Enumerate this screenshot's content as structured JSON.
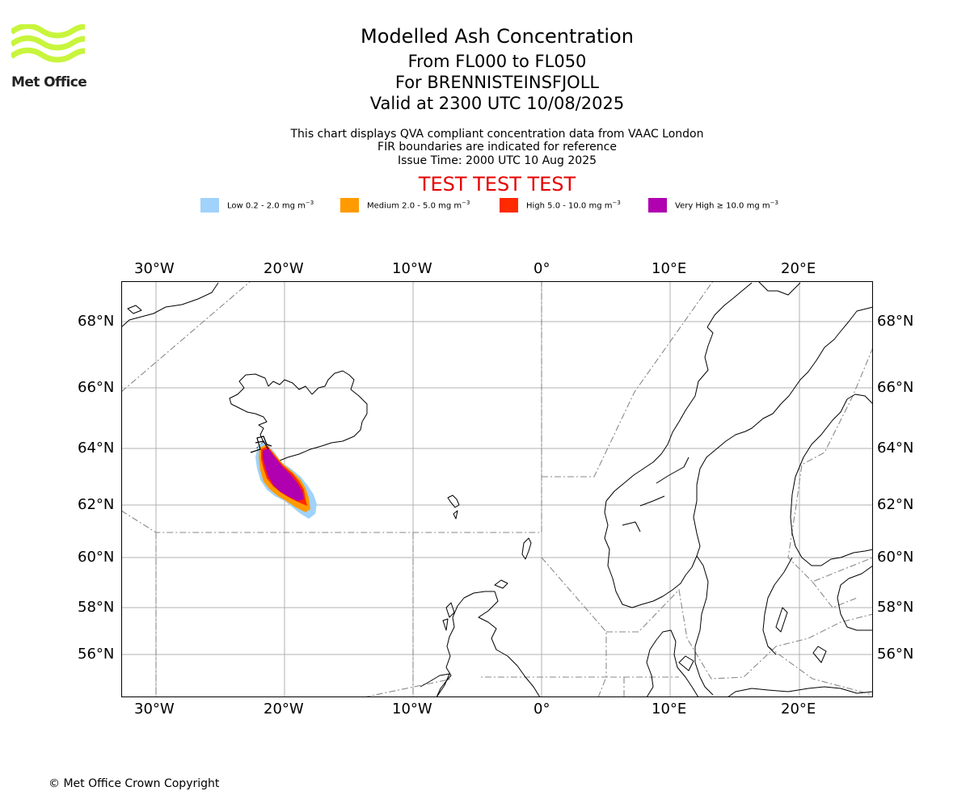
{
  "logo": {
    "text": "Met Office",
    "color": "#c8f53c"
  },
  "header": {
    "title": "Modelled Ash Concentration",
    "level_range": "From FL000 to FL050",
    "volcano": "For BRENNISTEINSFJOLL",
    "valid_time": "Valid at 2300 UTC 10/08/2025"
  },
  "description": {
    "line1": "This chart displays QVA compliant concentration data from VAAC London",
    "line2": "FIR boundaries are indicated for reference",
    "line3": "Issue Time: 2000 UTC 10 Aug 2025"
  },
  "test_banner": "TEST TEST TEST",
  "legend": [
    {
      "label": "Low 0.2 - 2.0 mg m",
      "exp": "−3",
      "color": "#a0d2fb"
    },
    {
      "label": "Medium 2.0 - 5.0 mg m",
      "exp": "−3",
      "color": "#ff9a00"
    },
    {
      "label": "High 5.0 - 10.0 mg m",
      "exp": "−3",
      "color": "#ff2a00"
    },
    {
      "label": "Very High ≥ 10.0 mg m",
      "exp": "−3",
      "color": "#b000b0"
    }
  ],
  "map": {
    "lon_labels": [
      "30°W",
      "20°W",
      "10°W",
      "0°",
      "10°E",
      "20°E"
    ],
    "lat_labels": [
      "68°N",
      "66°N",
      "64°N",
      "62°N",
      "60°N",
      "58°N",
      "56°N"
    ]
  },
  "footer": {
    "copyright": "© Met Office Crown Copyright"
  }
}
